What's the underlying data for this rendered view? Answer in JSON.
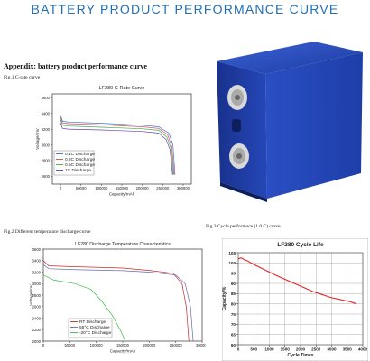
{
  "header": {
    "title": "BATTERY PRODUCT PERFORMANCE CURVE"
  },
  "appendix": "Appendix: battery product performance curve",
  "figures": {
    "fig1_caption": "Fig.1 C-rate curve",
    "fig2_caption": "Fig.2 Different temperature discharge curve",
    "fig3_caption": "Fig.3 Cycle performace (1.0 C) curve"
  },
  "colors": {
    "title": "#1f6fb8",
    "battery": "#1e3fa8",
    "cycle_line": "#e32222"
  },
  "chart_data": [
    {
      "type": "line",
      "title": "LF280 C-Rate Curve",
      "xlabel": "Capacity/mAh",
      "ylabel": "Voltage/mV",
      "xlim": [
        -20000,
        320000
      ],
      "ylim": [
        2500,
        3650
      ],
      "x_ticks": [
        0,
        50000,
        100000,
        150000,
        200000,
        250000,
        300000
      ],
      "y_ticks": [
        2600,
        2800,
        3000,
        3200,
        3400,
        3600
      ],
      "legend": "bottom-left",
      "series": [
        {
          "name": "0.1C Discharge",
          "color": "#3a6fd8",
          "points": [
            [
              0,
              3380
            ],
            [
              5000,
              3300
            ],
            [
              20000,
              3290
            ],
            [
              100000,
              3275
            ],
            [
              200000,
              3250
            ],
            [
              240000,
              3230
            ],
            [
              265000,
              3150
            ],
            [
              275000,
              3000
            ],
            [
              280000,
              2620
            ]
          ]
        },
        {
          "name": "0.2C Discharge",
          "color": "#d94a4a",
          "points": [
            [
              0,
              3350
            ],
            [
              5000,
              3280
            ],
            [
              20000,
              3270
            ],
            [
              100000,
              3255
            ],
            [
              200000,
              3230
            ],
            [
              240000,
              3210
            ],
            [
              262000,
              3130
            ],
            [
              272000,
              2980
            ],
            [
              278000,
              2620
            ]
          ]
        },
        {
          "name": "0.5C Discharge",
          "color": "#3aa84a",
          "points": [
            [
              0,
              3320
            ],
            [
              5000,
              3250
            ],
            [
              20000,
              3240
            ],
            [
              100000,
              3225
            ],
            [
              200000,
              3205
            ],
            [
              240000,
              3185
            ],
            [
              260000,
              3100
            ],
            [
              270000,
              2960
            ],
            [
              276000,
              2620
            ]
          ]
        },
        {
          "name": "1C Discharge",
          "color": "#6a3fb0",
          "points": [
            [
              0,
              3280
            ],
            [
              5000,
              3210
            ],
            [
              20000,
              3200
            ],
            [
              100000,
              3190
            ],
            [
              200000,
              3170
            ],
            [
              240000,
              3150
            ],
            [
              258000,
              3070
            ],
            [
              268000,
              2940
            ],
            [
              274000,
              2620
            ]
          ]
        }
      ],
      "x_tick_labels": [
        "0",
        "50000",
        "100000",
        "150000",
        "200000",
        "250000",
        "300000"
      ],
      "y_tick_labels": [
        "2600",
        "2800",
        "3000",
        "3200",
        "3400",
        "3600"
      ]
    },
    {
      "type": "line",
      "title": "LF280 Discharge Temperature Characteristics",
      "xlabel": "Capacity/mAh",
      "ylabel": "Voltage/mV",
      "xlim": [
        0,
        300000
      ],
      "ylim": [
        2000,
        3600
      ],
      "x_ticks": [
        0,
        50000,
        100000,
        150000,
        200000,
        250000,
        300000
      ],
      "y_ticks": [
        2000,
        2200,
        2400,
        2600,
        2800,
        3000,
        3200,
        3400,
        3600
      ],
      "legend": "bottom-left",
      "series": [
        {
          "name": "RT   Discharge",
          "color": "#c42a2a",
          "points": [
            [
              0,
              3400
            ],
            [
              10000,
              3310
            ],
            [
              50000,
              3295
            ],
            [
              150000,
              3270
            ],
            [
              200000,
              3230
            ],
            [
              245000,
              3180
            ],
            [
              262000,
              3000
            ],
            [
              270000,
              2600
            ],
            [
              275000,
              2000
            ]
          ]
        },
        {
          "name": "55°C Discharge",
          "color": "#6a6aa8",
          "points": [
            [
              0,
              3330
            ],
            [
              10000,
              3260
            ],
            [
              50000,
              3245
            ],
            [
              150000,
              3225
            ],
            [
              200000,
              3200
            ],
            [
              250000,
              3150
            ],
            [
              268000,
              3000
            ],
            [
              278000,
              2600
            ],
            [
              283000,
              2000
            ]
          ]
        },
        {
          "name": "-20°C Discharge",
          "color": "#3fb84a",
          "points": [
            [
              0,
              3150
            ],
            [
              20000,
              3060
            ],
            [
              60000,
              3000
            ],
            [
              90000,
              2900
            ],
            [
              110000,
              2700
            ],
            [
              130000,
              2450
            ],
            [
              145000,
              2200
            ],
            [
              155000,
              2000
            ]
          ]
        }
      ],
      "x_tick_labels": [
        "0",
        "50000",
        "100000",
        "150000",
        "200000",
        "250000",
        "300000"
      ],
      "y_tick_labels": [
        "2000",
        "2200",
        "2400",
        "2600",
        "2800",
        "3000",
        "3200",
        "3400",
        "3600"
      ]
    },
    {
      "type": "line",
      "title": "LF280 Cycle Life",
      "xlabel": "Cycle Times",
      "ylabel": "Capacity/%",
      "xlim": [
        0,
        4000
      ],
      "ylim": [
        60,
        105
      ],
      "x_ticks": [
        0,
        500,
        1000,
        1500,
        2000,
        2500,
        3000,
        3500,
        4000
      ],
      "y_ticks": [
        60,
        65,
        70,
        75,
        80,
        85,
        90,
        95,
        100,
        105
      ],
      "grid": true,
      "series": [
        {
          "color": "#e32222",
          "points": [
            [
              0,
              102
            ],
            [
              100,
              102.5
            ],
            [
              200,
              101.5
            ],
            [
              300,
              101
            ],
            [
              400,
              100
            ],
            [
              600,
              98.5
            ],
            [
              800,
              97
            ],
            [
              1000,
              95.5
            ],
            [
              1200,
              94
            ],
            [
              1500,
              92
            ],
            [
              1800,
              90
            ],
            [
              2100,
              88
            ],
            [
              2400,
              86
            ],
            [
              2600,
              85
            ],
            [
              2800,
              84
            ],
            [
              3000,
              83
            ],
            [
              3300,
              82
            ],
            [
              3600,
              81
            ],
            [
              3800,
              80
            ]
          ]
        }
      ],
      "x_tick_labels": [
        "0",
        "500",
        "1000",
        "1500",
        "2000",
        "2500",
        "3000",
        "3500",
        "4000"
      ],
      "y_tick_labels": [
        "60",
        "65",
        "70",
        "75",
        "80",
        "85",
        "90",
        "95",
        "100",
        "105"
      ]
    }
  ]
}
